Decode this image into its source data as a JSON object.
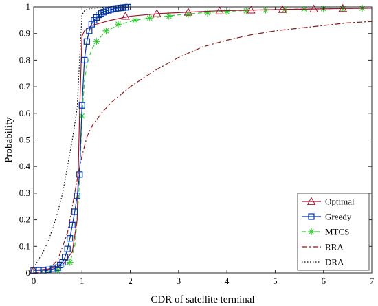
{
  "chart_data": {
    "type": "line",
    "title": "",
    "xlabel": "CDR of satellite terminal",
    "ylabel": "Probability",
    "xlim": [
      0,
      7
    ],
    "ylim": [
      0,
      1
    ],
    "xticks": [
      "0",
      "1",
      "2",
      "3",
      "4",
      "5",
      "6",
      "7"
    ],
    "yticks": [
      "0",
      "0.1",
      "0.2",
      "0.3",
      "0.4",
      "0.5",
      "0.6",
      "0.7",
      "0.8",
      "0.9",
      "1"
    ],
    "grid": false,
    "legend_position": "bottom-right",
    "series": [
      {
        "name": "Optimal",
        "color": "#a2142f",
        "line": "solid",
        "marker": "triangle",
        "x": [
          0,
          0.3,
          0.6,
          0.8,
          0.9,
          0.95,
          1.0,
          1.05,
          1.2,
          1.6,
          2.0,
          2.6,
          3.2,
          3.8,
          4.5,
          5.1,
          5.8,
          6.4,
          7.0
        ],
        "y": [
          0.01,
          0.015,
          0.03,
          0.08,
          0.2,
          0.6,
          0.89,
          0.91,
          0.93,
          0.95,
          0.965,
          0.975,
          0.98,
          0.985,
          0.988,
          0.99,
          0.992,
          0.994,
          0.995
        ],
        "marker_x": [
          0,
          1.9,
          2.55,
          3.2,
          3.85,
          4.5,
          5.15,
          5.8,
          6.4
        ],
        "marker_y": [
          0.01,
          0.965,
          0.975,
          0.98,
          0.985,
          0.988,
          0.99,
          0.992,
          0.994
        ]
      },
      {
        "name": "Greedy",
        "color": "#0033a0",
        "line": "solid",
        "marker": "square",
        "x": [
          0,
          0.1,
          0.2,
          0.3,
          0.4,
          0.5,
          0.55,
          0.6,
          0.65,
          0.7,
          0.75,
          0.8,
          0.85,
          0.9,
          0.95,
          1.0,
          1.05,
          1.1,
          1.15,
          1.2,
          1.25,
          1.3,
          1.35,
          1.4,
          1.45,
          1.5,
          1.55,
          1.6,
          1.65,
          1.7,
          1.75,
          1.8,
          1.85,
          1.9,
          1.95
        ],
        "y": [
          0.01,
          0.01,
          0.01,
          0.012,
          0.015,
          0.02,
          0.03,
          0.04,
          0.06,
          0.09,
          0.13,
          0.18,
          0.23,
          0.29,
          0.37,
          0.63,
          0.8,
          0.87,
          0.91,
          0.935,
          0.95,
          0.96,
          0.97,
          0.975,
          0.98,
          0.985,
          0.987,
          0.99,
          0.992,
          0.994,
          0.995,
          0.996,
          0.997,
          0.998,
          0.999
        ],
        "marker_x": [
          0,
          0.1,
          0.2,
          0.3,
          0.4,
          0.5,
          0.55,
          0.6,
          0.65,
          0.7,
          0.75,
          0.8,
          0.85,
          0.9,
          0.95,
          1.0,
          1.05,
          1.1,
          1.15,
          1.2,
          1.25,
          1.3,
          1.35,
          1.4,
          1.45,
          1.5,
          1.55,
          1.6,
          1.65,
          1.7,
          1.75,
          1.8,
          1.85,
          1.9,
          1.95
        ],
        "marker_y": [
          0.01,
          0.01,
          0.01,
          0.012,
          0.015,
          0.02,
          0.03,
          0.04,
          0.06,
          0.09,
          0.13,
          0.18,
          0.23,
          0.29,
          0.37,
          0.63,
          0.8,
          0.87,
          0.91,
          0.935,
          0.95,
          0.96,
          0.97,
          0.975,
          0.98,
          0.985,
          0.987,
          0.99,
          0.992,
          0.994,
          0.995,
          0.996,
          0.997,
          0.998,
          0.999
        ]
      },
      {
        "name": "MTCS",
        "color": "#33cc33",
        "line": "dashed",
        "marker": "asterisk",
        "x": [
          0,
          0.3,
          0.6,
          0.75,
          0.85,
          0.9,
          0.95,
          1.0,
          1.05,
          1.1,
          1.2,
          1.3,
          1.5,
          1.8,
          2.1,
          2.5,
          3.0,
          3.5,
          4.0,
          4.5,
          5.0,
          5.5,
          6.0,
          6.5,
          7.0
        ],
        "y": [
          0.0,
          0.005,
          0.02,
          0.04,
          0.1,
          0.2,
          0.35,
          0.59,
          0.72,
          0.78,
          0.84,
          0.87,
          0.91,
          0.935,
          0.95,
          0.96,
          0.97,
          0.978,
          0.983,
          0.987,
          0.99,
          0.992,
          0.993,
          0.994,
          0.995
        ],
        "marker_x": [
          0.5,
          0.75,
          1.0,
          1.3,
          1.5,
          1.75,
          2.1,
          2.4,
          2.8,
          3.2,
          3.6,
          4.0,
          4.4,
          4.8,
          5.2,
          5.6,
          6.0,
          6.4,
          6.8
        ],
        "marker_y": [
          0.01,
          0.04,
          0.59,
          0.87,
          0.91,
          0.935,
          0.95,
          0.958,
          0.965,
          0.972,
          0.977,
          0.982,
          0.985,
          0.988,
          0.99,
          0.992,
          0.993,
          0.994,
          0.995
        ]
      },
      {
        "name": "RRA",
        "color": "#8b1a1a",
        "line": "dashdot",
        "marker": "none",
        "x": [
          0,
          0.3,
          0.5,
          0.7,
          0.8,
          0.9,
          1.0,
          1.1,
          1.2,
          1.4,
          1.6,
          1.8,
          2.0,
          2.5,
          3.0,
          3.5,
          4.0,
          4.5,
          5.0,
          5.5,
          6.0,
          6.5,
          7.0
        ],
        "y": [
          0.0,
          0.01,
          0.05,
          0.15,
          0.25,
          0.35,
          0.44,
          0.51,
          0.55,
          0.6,
          0.64,
          0.67,
          0.7,
          0.76,
          0.81,
          0.85,
          0.875,
          0.895,
          0.91,
          0.92,
          0.93,
          0.94,
          0.945
        ],
        "marker_x": [],
        "marker_y": []
      },
      {
        "name": "DRA",
        "color": "#000000",
        "line": "dotted",
        "marker": "none",
        "x": [
          0,
          0.1,
          0.2,
          0.3,
          0.4,
          0.5,
          0.6,
          0.7,
          0.8,
          0.9,
          0.95,
          1.0,
          1.05,
          1.1,
          1.2,
          1.4,
          1.6,
          1.8,
          2.0
        ],
        "y": [
          0.02,
          0.05,
          0.08,
          0.12,
          0.17,
          0.23,
          0.3,
          0.4,
          0.5,
          0.62,
          0.8,
          0.97,
          0.985,
          0.99,
          0.995,
          0.997,
          0.998,
          0.999,
          1.0
        ],
        "marker_x": [],
        "marker_y": []
      }
    ]
  }
}
